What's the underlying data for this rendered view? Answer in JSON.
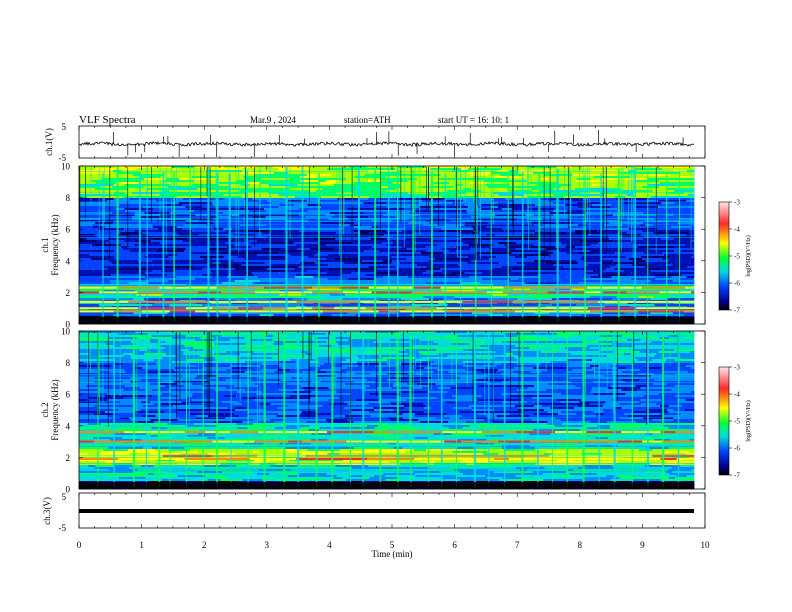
{
  "header": {
    "title": "VLF  Spectra",
    "date": "Mar.9  , 2024",
    "station": "station=ATH",
    "start_ut": "start  UT  =    16: 10: 1"
  },
  "colorbar": {
    "label": "log(PSD)(V²/Hz)",
    "ticks": [
      "-3",
      "-4",
      "-5",
      "-6",
      "-7"
    ],
    "colors": [
      "#ffe4e4",
      "#ff2a2a",
      "#ffff00",
      "#00ff33",
      "#00dcdc",
      "#0044ff",
      "#00008a",
      "#000000"
    ]
  },
  "chart_data": [
    {
      "type": "line",
      "name": "ch1-waveform",
      "ylabel": "ch.1(V)",
      "ylim": [
        -5,
        5
      ],
      "y_ticks": [
        "5",
        "-5"
      ],
      "xlim": [
        0,
        10
      ],
      "baseline": 0,
      "spike_times_min": [
        0.55,
        0.78,
        0.9,
        1.05,
        1.35,
        1.42,
        1.6,
        2.1,
        2.2,
        2.8,
        3.2,
        3.6,
        4.6,
        4.75,
        4.95,
        5.1,
        5.4,
        5.85,
        6.0,
        6.25,
        6.7,
        6.75,
        7.1,
        7.5,
        7.6,
        7.9,
        8.3,
        8.4,
        8.9,
        9.65
      ]
    },
    {
      "type": "heatmap",
      "name": "ch1-spectrogram",
      "ylabel": "ch.1\nFrequency (kHz)",
      "ylim": [
        0,
        10
      ],
      "y_ticks": [
        "10",
        "8",
        "6",
        "4",
        "2",
        "0"
      ],
      "xlim": [
        0,
        9.83
      ],
      "strong_bands_khz": [
        0.8,
        1.0,
        1.4,
        2.0,
        2.3
      ],
      "sferic_times_min": [
        0.35,
        0.6,
        0.95,
        1.1,
        1.35,
        1.5,
        1.75,
        2.05,
        2.2,
        2.4,
        2.7,
        3.05,
        3.3,
        3.55,
        3.8,
        4.2,
        4.45,
        4.7,
        4.95,
        5.1,
        5.35,
        5.6,
        5.85,
        6.1,
        6.35,
        6.6,
        6.85,
        7.1,
        7.35,
        7.6,
        7.85,
        8.1,
        8.35,
        8.6,
        8.85,
        9.1,
        9.35,
        9.6
      ]
    },
    {
      "type": "heatmap",
      "name": "ch2-spectrogram",
      "ylabel": "ch.2\nFrequency (kHz)",
      "ylim": [
        0,
        10
      ],
      "y_ticks": [
        "10",
        "8",
        "6",
        "4",
        "2",
        "0"
      ],
      "xlim": [
        0,
        9.83
      ],
      "strong_bands_khz": [
        1.9,
        2.1,
        3.0,
        3.6
      ],
      "sferic_times_min": [
        0.3,
        0.55,
        0.85,
        1.05,
        1.25,
        1.45,
        1.7,
        1.95,
        2.2,
        2.45,
        2.7,
        2.95,
        3.25,
        3.5,
        3.75,
        4.0,
        4.3,
        4.55,
        4.8,
        5.05,
        5.3,
        5.55,
        5.8,
        6.05,
        6.3,
        6.55,
        6.8,
        7.05,
        7.3,
        7.55,
        7.8,
        8.05,
        8.3,
        8.55,
        8.8,
        9.05,
        9.3,
        9.55
      ]
    },
    {
      "type": "line",
      "name": "ch3-waveform",
      "ylabel": "ch.3(V)",
      "ylim": [
        -5,
        5
      ],
      "y_ticks": [
        "5",
        "-5"
      ],
      "xlim": [
        0,
        10
      ],
      "baseline": 0,
      "x_ticks": [
        "0",
        "1",
        "2",
        "3",
        "4",
        "5",
        "6",
        "7",
        "8",
        "9",
        "10"
      ],
      "xlabel": "Time  (min)"
    }
  ]
}
